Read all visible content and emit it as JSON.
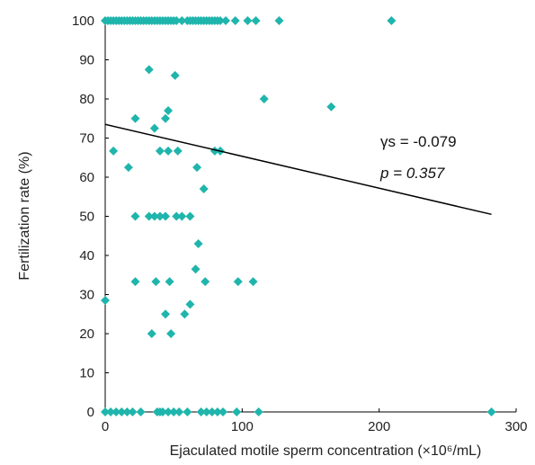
{
  "chart_data": {
    "type": "scatter",
    "xlabel": "Ejaculated motile sperm concentration (×10⁶/mL)",
    "ylabel": "Fertilization rate (%)",
    "xlim": [
      0,
      300
    ],
    "ylim": [
      0,
      100
    ],
    "x_ticks": [
      0,
      100,
      200,
      300
    ],
    "y_ticks": [
      0,
      10,
      20,
      30,
      40,
      50,
      60,
      70,
      80,
      90,
      100
    ],
    "grid": false,
    "marker_color": "#1fb5ac",
    "points": [
      [
        0,
        100
      ],
      [
        2,
        100
      ],
      [
        4,
        100
      ],
      [
        6,
        100
      ],
      [
        8,
        100
      ],
      [
        10,
        100
      ],
      [
        12,
        100
      ],
      [
        14,
        100
      ],
      [
        16,
        100
      ],
      [
        18,
        100
      ],
      [
        20,
        100
      ],
      [
        22,
        100
      ],
      [
        24,
        100
      ],
      [
        26,
        100
      ],
      [
        28,
        100
      ],
      [
        30,
        100
      ],
      [
        32,
        100
      ],
      [
        34,
        100
      ],
      [
        36,
        100
      ],
      [
        38,
        100
      ],
      [
        40,
        100
      ],
      [
        42,
        100
      ],
      [
        44,
        100
      ],
      [
        46,
        100
      ],
      [
        48,
        100
      ],
      [
        50,
        100
      ],
      [
        52,
        100
      ],
      [
        56,
        100
      ],
      [
        60,
        100
      ],
      [
        62,
        100
      ],
      [
        64,
        100
      ],
      [
        66,
        100
      ],
      [
        68,
        100
      ],
      [
        70,
        100
      ],
      [
        72,
        100
      ],
      [
        74,
        100
      ],
      [
        76,
        100
      ],
      [
        78,
        100
      ],
      [
        80,
        100
      ],
      [
        82,
        100
      ],
      [
        84,
        100
      ],
      [
        88,
        100
      ],
      [
        95,
        100
      ],
      [
        104,
        100
      ],
      [
        110,
        100
      ],
      [
        127,
        100
      ],
      [
        209,
        100
      ],
      [
        32,
        87.5
      ],
      [
        51,
        86
      ],
      [
        116,
        80
      ],
      [
        165,
        78
      ],
      [
        44,
        75
      ],
      [
        46,
        77
      ],
      [
        22,
        75
      ],
      [
        36,
        72.5
      ],
      [
        6,
        66.7
      ],
      [
        40,
        66.7
      ],
      [
        46,
        66.7
      ],
      [
        53,
        66.7
      ],
      [
        80,
        66.7
      ],
      [
        84,
        66.7
      ],
      [
        17,
        62.5
      ],
      [
        67,
        62.5
      ],
      [
        72,
        57
      ],
      [
        22,
        50
      ],
      [
        32,
        50
      ],
      [
        36,
        50
      ],
      [
        40,
        50
      ],
      [
        44,
        50
      ],
      [
        52,
        50
      ],
      [
        56,
        50
      ],
      [
        62,
        50
      ],
      [
        68,
        43
      ],
      [
        66,
        36.5
      ],
      [
        0,
        28.5
      ],
      [
        22,
        33.3
      ],
      [
        37,
        33.3
      ],
      [
        47,
        33.3
      ],
      [
        73,
        33.3
      ],
      [
        97,
        33.3
      ],
      [
        108,
        33.3
      ],
      [
        62,
        27.5
      ],
      [
        58,
        25
      ],
      [
        44,
        25
      ],
      [
        34,
        20
      ],
      [
        48,
        20
      ],
      [
        0,
        0
      ],
      [
        4,
        0
      ],
      [
        8,
        0
      ],
      [
        12,
        0
      ],
      [
        16,
        0
      ],
      [
        20,
        0
      ],
      [
        26,
        0
      ],
      [
        38,
        0
      ],
      [
        40,
        0
      ],
      [
        42,
        0
      ],
      [
        46,
        0
      ],
      [
        50,
        0
      ],
      [
        54,
        0
      ],
      [
        60,
        0
      ],
      [
        70,
        0
      ],
      [
        74,
        0
      ],
      [
        78,
        0
      ],
      [
        82,
        0
      ],
      [
        86,
        0
      ],
      [
        96,
        0
      ],
      [
        112,
        0
      ],
      [
        282,
        0
      ]
    ],
    "trend_line": {
      "x": [
        0,
        282
      ],
      "y": [
        73.5,
        50.5
      ]
    },
    "annotations": [
      {
        "label": "γs = -0.079"
      },
      {
        "label": "p = 0.357"
      }
    ]
  }
}
